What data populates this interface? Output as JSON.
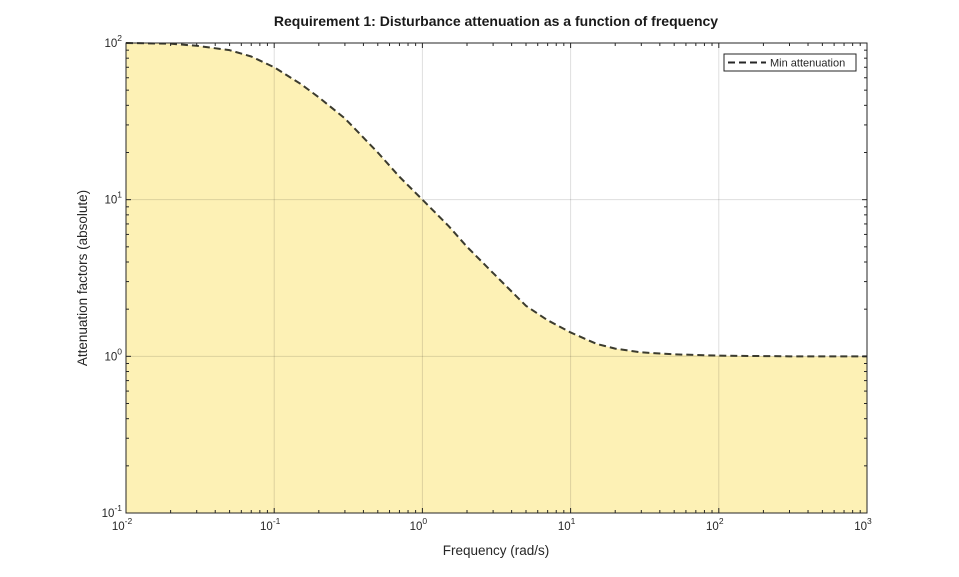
{
  "chart_data": {
    "type": "area",
    "title": "Requirement 1: Disturbance attenuation as a function of frequency",
    "xlabel": "Frequency (rad/s)",
    "ylabel": "Attenuation factors (absolute)",
    "xscale": "log",
    "yscale": "log",
    "xlim": [
      0.01,
      1000
    ],
    "ylim": [
      0.1,
      100
    ],
    "x_ticks": [
      {
        "base": "10",
        "exp": "-2",
        "value": 0.01
      },
      {
        "base": "10",
        "exp": "-1",
        "value": 0.1
      },
      {
        "base": "10",
        "exp": "0",
        "value": 1
      },
      {
        "base": "10",
        "exp": "1",
        "value": 10
      },
      {
        "base": "10",
        "exp": "2",
        "value": 100
      },
      {
        "base": "10",
        "exp": "3",
        "value": 1000
      }
    ],
    "y_ticks": [
      {
        "base": "10",
        "exp": "-1",
        "value": 0.1
      },
      {
        "base": "10",
        "exp": "0",
        "value": 1
      },
      {
        "base": "10",
        "exp": "1",
        "value": 10
      },
      {
        "base": "10",
        "exp": "2",
        "value": 100
      }
    ],
    "grid": true,
    "legend_position": "top-right",
    "series": [
      {
        "name": "Min attenuation",
        "style": "dashed",
        "color": "#3b3b2e",
        "fill_color": "#fdf1b5",
        "x": [
          0.01,
          0.02,
          0.03,
          0.05,
          0.07,
          0.1,
          0.15,
          0.2,
          0.3,
          0.5,
          0.7,
          1,
          1.5,
          2,
          3,
          5,
          7,
          10,
          15,
          20,
          30,
          50,
          100,
          300,
          1000
        ],
        "y": [
          100,
          99,
          96,
          90,
          82,
          70,
          55,
          45,
          33,
          20,
          14,
          10,
          6.8,
          5.0,
          3.4,
          2.1,
          1.7,
          1.42,
          1.2,
          1.12,
          1.06,
          1.03,
          1.01,
          1.0,
          1.0
        ]
      }
    ]
  }
}
